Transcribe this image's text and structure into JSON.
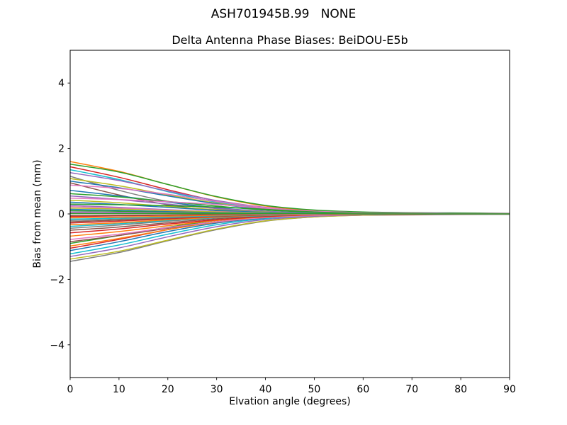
{
  "figure": {
    "background": "#ffffff",
    "axis_color": "#000000",
    "text_color": "#000000"
  },
  "chart_data": {
    "type": "line",
    "suptitle": "ASH701945B.99   NONE",
    "title": "Delta Antenna Phase Biases: BeiDOU-E5b",
    "xlabel": "Elvation angle (degrees)",
    "ylabel": "Bias from mean (mm)",
    "xlim": [
      0,
      90
    ],
    "ylim": [
      -5,
      5
    ],
    "xticks": [
      0,
      10,
      20,
      30,
      40,
      50,
      60,
      70,
      80,
      90
    ],
    "yticks": [
      -4,
      -2,
      0,
      2,
      4
    ],
    "grid": false,
    "legend": "none",
    "x": [
      0,
      10,
      20,
      30,
      40,
      50,
      60,
      70,
      80,
      90
    ],
    "series": [
      {
        "color": "#ff7f0e",
        "values": [
          1.6,
          1.3,
          0.9,
          0.52,
          0.24,
          0.1,
          0.05,
          0.03,
          0.02,
          0.01
        ]
      },
      {
        "color": "#7f7f7f",
        "values": [
          -1.45,
          -1.18,
          -0.82,
          -0.48,
          -0.22,
          -0.09,
          -0.04,
          -0.03,
          -0.02,
          -0.01
        ]
      },
      {
        "color": "#2ca02c",
        "values": [
          1.52,
          1.28,
          0.9,
          0.53,
          0.26,
          0.12,
          0.06,
          0.04,
          0.03,
          0.02
        ]
      },
      {
        "color": "#bcbd22",
        "values": [
          -1.38,
          -1.14,
          -0.8,
          -0.46,
          -0.21,
          -0.09,
          -0.04,
          -0.02,
          -0.01,
          -0.01
        ]
      },
      {
        "color": "#d62728",
        "values": [
          1.44,
          1.12,
          0.74,
          0.4,
          0.18,
          0.07,
          0.04,
          0.02,
          0.01,
          0.01
        ]
      },
      {
        "color": "#9467bd",
        "values": [
          -1.3,
          -1.04,
          -0.7,
          -0.39,
          -0.17,
          -0.07,
          -0.03,
          -0.02,
          -0.01,
          -0.01
        ]
      },
      {
        "color": "#17becf",
        "values": [
          1.35,
          1.05,
          0.68,
          0.36,
          0.16,
          0.06,
          0.03,
          0.02,
          0.01,
          0.01
        ]
      },
      {
        "color": "#17becf",
        "values": [
          -1.22,
          -0.95,
          -0.62,
          -0.33,
          -0.14,
          -0.05,
          -0.02,
          -0.01,
          -0.01,
          0.0
        ]
      },
      {
        "color": "#9467bd",
        "values": [
          1.26,
          1.02,
          0.7,
          0.41,
          0.2,
          0.08,
          0.04,
          0.03,
          0.02,
          0.01
        ]
      },
      {
        "color": "#1f77b4",
        "values": [
          -1.12,
          -0.85,
          -0.54,
          -0.28,
          -0.12,
          -0.04,
          -0.02,
          -0.01,
          -0.01,
          0.0
        ]
      },
      {
        "color": "#7f7f7f",
        "values": [
          1.15,
          0.72,
          0.38,
          0.16,
          0.06,
          0.02,
          0.01,
          0.01,
          0.0,
          0.0
        ]
      },
      {
        "color": "#d62728",
        "values": [
          -1.05,
          -0.78,
          -0.48,
          -0.24,
          -0.1,
          -0.04,
          -0.02,
          -0.01,
          0.0,
          0.0
        ]
      },
      {
        "color": "#bcbd22",
        "values": [
          1.08,
          0.86,
          0.58,
          0.33,
          0.15,
          0.06,
          0.03,
          0.02,
          0.01,
          0.01
        ]
      },
      {
        "color": "#ff7f0e",
        "values": [
          -0.98,
          -0.75,
          -0.48,
          -0.25,
          -0.11,
          -0.04,
          -0.02,
          -0.01,
          -0.01,
          0.0
        ]
      },
      {
        "color": "#1f77b4",
        "values": [
          1.0,
          0.8,
          0.55,
          0.31,
          0.14,
          0.06,
          0.03,
          0.02,
          0.01,
          0.01
        ]
      },
      {
        "color": "#2ca02c",
        "values": [
          -0.9,
          -0.66,
          -0.41,
          -0.2,
          -0.08,
          -0.03,
          -0.01,
          -0.01,
          0.0,
          0.0
        ]
      },
      {
        "color": "#8c564b",
        "values": [
          0.95,
          0.58,
          0.28,
          0.1,
          0.03,
          0.01,
          0.0,
          0.0,
          0.0,
          0.0
        ]
      },
      {
        "color": "#8c564b",
        "values": [
          -0.85,
          -0.66,
          -0.44,
          -0.24,
          -0.11,
          -0.04,
          -0.02,
          -0.01,
          -0.01,
          0.0
        ]
      },
      {
        "color": "#e377c2",
        "values": [
          0.88,
          0.78,
          0.6,
          0.38,
          0.19,
          0.08,
          0.04,
          0.02,
          0.01,
          0.01
        ]
      },
      {
        "color": "#e377c2",
        "values": [
          -0.78,
          -0.62,
          -0.42,
          -0.24,
          -0.11,
          -0.05,
          -0.02,
          -0.01,
          -0.01,
          0.0
        ]
      },
      {
        "color": "#1f77b4",
        "values": [
          0.72,
          0.55,
          0.36,
          0.19,
          0.08,
          0.03,
          0.01,
          0.01,
          0.0,
          0.0
        ]
      },
      {
        "color": "#ff7f0e",
        "values": [
          -0.68,
          -0.54,
          -0.36,
          -0.2,
          -0.09,
          -0.03,
          -0.02,
          -0.01,
          0.0,
          0.0
        ]
      },
      {
        "color": "#2ca02c",
        "values": [
          0.62,
          0.52,
          0.38,
          0.24,
          0.12,
          0.05,
          0.02,
          0.01,
          0.01,
          0.0
        ]
      },
      {
        "color": "#d62728",
        "values": [
          -0.58,
          -0.46,
          -0.31,
          -0.18,
          -0.08,
          -0.03,
          -0.01,
          -0.01,
          0.0,
          0.0
        ]
      },
      {
        "color": "#9467bd",
        "values": [
          0.55,
          0.44,
          0.3,
          0.17,
          0.08,
          0.03,
          0.01,
          0.01,
          0.0,
          0.0
        ]
      },
      {
        "color": "#8c564b",
        "values": [
          -0.5,
          -0.4,
          -0.27,
          -0.15,
          -0.06,
          -0.02,
          -0.01,
          0.0,
          0.0,
          0.0
        ]
      },
      {
        "color": "#e377c2",
        "values": [
          0.48,
          0.44,
          0.37,
          0.29,
          0.17,
          0.08,
          0.04,
          0.02,
          0.01,
          0.01
        ]
      },
      {
        "color": "#7f7f7f",
        "values": [
          -0.44,
          -0.34,
          -0.22,
          -0.12,
          -0.05,
          -0.02,
          -0.01,
          0.0,
          0.0,
          0.0
        ]
      },
      {
        "color": "#bcbd22",
        "values": [
          0.42,
          0.34,
          0.23,
          0.13,
          0.06,
          0.02,
          0.01,
          0.01,
          0.0,
          0.0
        ]
      },
      {
        "color": "#17becf",
        "values": [
          -0.38,
          -0.3,
          -0.2,
          -0.11,
          -0.05,
          -0.02,
          -0.01,
          0.0,
          0.0,
          0.0
        ]
      },
      {
        "color": "#1f77b4",
        "values": [
          0.36,
          0.29,
          0.2,
          0.11,
          0.05,
          0.02,
          0.01,
          0.0,
          0.0,
          0.0
        ]
      },
      {
        "color": "#ff7f0e",
        "values": [
          -0.33,
          -0.27,
          -0.18,
          -0.1,
          -0.04,
          -0.02,
          -0.01,
          0.0,
          0.0,
          0.0
        ]
      },
      {
        "color": "#2ca02c",
        "values": [
          0.3,
          0.28,
          0.25,
          0.21,
          0.14,
          0.06,
          0.03,
          0.01,
          0.01,
          0.0
        ]
      },
      {
        "color": "#d62728",
        "values": [
          -0.28,
          -0.22,
          -0.15,
          -0.08,
          -0.03,
          -0.01,
          0.0,
          0.0,
          0.0,
          0.0
        ]
      },
      {
        "color": "#9467bd",
        "values": [
          0.26,
          0.2,
          0.13,
          0.07,
          0.03,
          0.01,
          0.0,
          0.0,
          0.0,
          0.0
        ]
      },
      {
        "color": "#8c564b",
        "values": [
          -0.24,
          -0.19,
          -0.13,
          -0.07,
          -0.03,
          -0.01,
          0.0,
          0.0,
          0.0,
          0.0
        ]
      },
      {
        "color": "#e377c2",
        "values": [
          0.22,
          0.18,
          0.12,
          0.07,
          0.03,
          0.01,
          0.01,
          0.0,
          0.0,
          0.0
        ]
      },
      {
        "color": "#7f7f7f",
        "values": [
          -0.2,
          -0.16,
          -0.11,
          -0.06,
          -0.02,
          -0.01,
          0.0,
          0.0,
          0.0,
          0.0
        ]
      },
      {
        "color": "#bcbd22",
        "values": [
          0.18,
          0.15,
          0.1,
          0.06,
          0.03,
          0.01,
          0.0,
          0.0,
          0.0,
          0.0
        ]
      },
      {
        "color": "#17becf",
        "values": [
          -0.16,
          -0.13,
          -0.09,
          -0.05,
          -0.02,
          -0.01,
          0.0,
          0.0,
          0.0,
          0.0
        ]
      },
      {
        "color": "#1f77b4",
        "values": [
          0.14,
          0.11,
          0.07,
          0.04,
          0.02,
          0.01,
          0.0,
          0.0,
          0.0,
          0.0
        ]
      },
      {
        "color": "#ff7f0e",
        "values": [
          -0.12,
          -0.1,
          -0.07,
          -0.04,
          -0.02,
          -0.01,
          0.0,
          0.0,
          0.0,
          0.0
        ]
      },
      {
        "color": "#2ca02c",
        "values": [
          0.1,
          0.08,
          0.05,
          0.03,
          0.01,
          0.0,
          0.0,
          0.0,
          0.0,
          0.0
        ]
      },
      {
        "color": "#d62728",
        "values": [
          -0.08,
          -0.06,
          -0.04,
          -0.02,
          -0.01,
          0.0,
          0.0,
          0.0,
          0.0,
          0.0
        ]
      },
      {
        "color": "#9467bd",
        "values": [
          0.06,
          0.05,
          0.03,
          0.02,
          0.01,
          0.0,
          0.0,
          0.0,
          0.0,
          0.0
        ]
      },
      {
        "color": "#8c564b",
        "values": [
          -0.05,
          -0.04,
          -0.03,
          -0.01,
          -0.01,
          0.0,
          0.0,
          0.0,
          0.0,
          0.0
        ]
      },
      {
        "color": "#e377c2",
        "values": [
          0.03,
          0.02,
          0.02,
          0.01,
          0.0,
          0.0,
          0.0,
          0.0,
          0.0,
          0.0
        ]
      },
      {
        "color": "#2ca02c",
        "values": [
          0.01,
          0.01,
          0.01,
          0.01,
          0.01,
          0.01,
          0.0,
          0.0,
          0.0,
          0.0
        ]
      }
    ]
  }
}
